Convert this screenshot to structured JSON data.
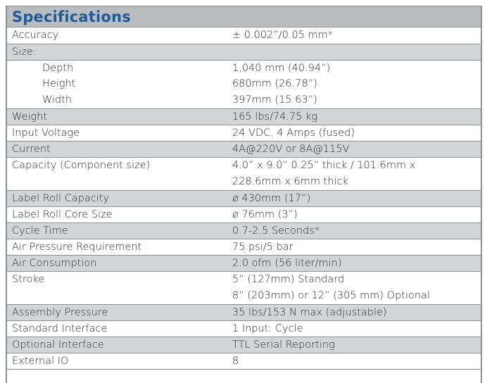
{
  "title": "Specifications",
  "rows": [
    {
      "label": "Accuracy",
      "value": "± 0.002”/0.05 mm*"
    },
    {
      "label": "Size:",
      "value": ""
    },
    {
      "label": "Depth",
      "value": "1,040 mm (40.94”)"
    },
    {
      "label": "Height",
      "value": "680mm (26.78”)"
    },
    {
      "label": "Width",
      "value": "397mm (15.63”)"
    },
    {
      "label": "Weight",
      "value": "165 lbs/74.75 kg"
    },
    {
      "label": "Input Voltage",
      "value": "24 VDC, 4 Amps (fused)"
    },
    {
      "label": "Current",
      "value": "4A@220V or 8A@115V"
    },
    {
      "label": "Capacity (Component size)",
      "value": "4.0” x 9.0” 0.25” thick / 101.6mm x",
      "value2": "228.6mm x 6mm thick"
    },
    {
      "label": "Label Roll Capacity",
      "value": "ø 430mm (17”)"
    },
    {
      "label": "Label Roll Core Size",
      "value": "ø 76mm (3”)"
    },
    {
      "label": "Cycle Time",
      "value": "0.7-2.5 Seconds*"
    },
    {
      "label": "Air Pressure Requirement",
      "value": "75 psi/5 bar"
    },
    {
      "label": "Air Consumption",
      "value": "2.0 ofm (56 liter/min)"
    },
    {
      "label": "Stroke",
      "value": "5” (127mm) Standard",
      "value2": "8” (203mm) or 12” (305 mm) Optional"
    },
    {
      "label": "Assembly Pressure",
      "value": "35 lbs/153 N max (adjustable)"
    },
    {
      "label": "Standard Interface",
      "value": "1 Input: Cycle"
    },
    {
      "label": "Optional Interface",
      "value": "TTL Serial Reporting"
    },
    {
      "label": "External IO",
      "value": "8"
    }
  ]
}
